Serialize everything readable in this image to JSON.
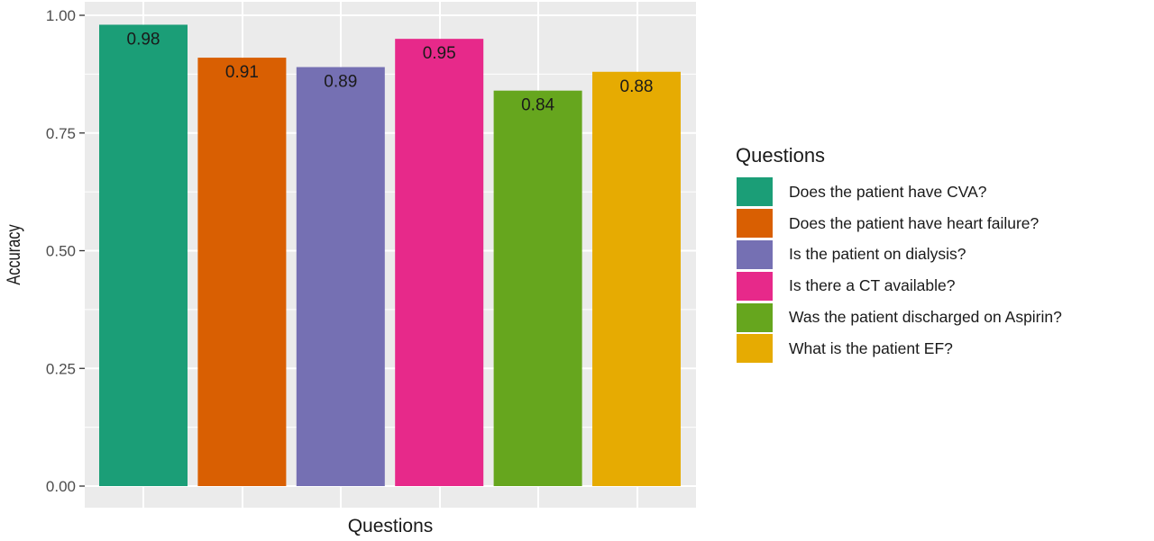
{
  "chart_data": {
    "type": "bar",
    "categories": [
      "Does the patient have CVA?",
      "Does the patient have heart failure?",
      "Is the patient on dialysis?",
      "Is there a CT available?",
      "Was the patient discharged on Aspirin?",
      "What is the patient EF?"
    ],
    "values": [
      0.98,
      0.91,
      0.89,
      0.95,
      0.84,
      0.88
    ],
    "data_labels": [
      "0.98",
      "0.91",
      "0.89",
      "0.95",
      "0.84",
      "0.88"
    ],
    "colors": [
      "#1b9e77",
      "#d95f02",
      "#7570b3",
      "#e7298a",
      "#66a61e",
      "#e6ab02"
    ],
    "xlabel": "Questions",
    "ylabel": "Accuracy",
    "ylim": [
      0,
      1.0
    ],
    "y_ticks": [
      0.0,
      0.25,
      0.5,
      0.75,
      1.0
    ],
    "y_tick_labels": [
      "0.00",
      "0.25",
      "0.50",
      "0.75",
      "1.00"
    ],
    "grid": true,
    "legend": {
      "title": "Questions",
      "placement": "right"
    },
    "panel_background": "#ebebeb",
    "gridline_color": "#ffffff"
  }
}
